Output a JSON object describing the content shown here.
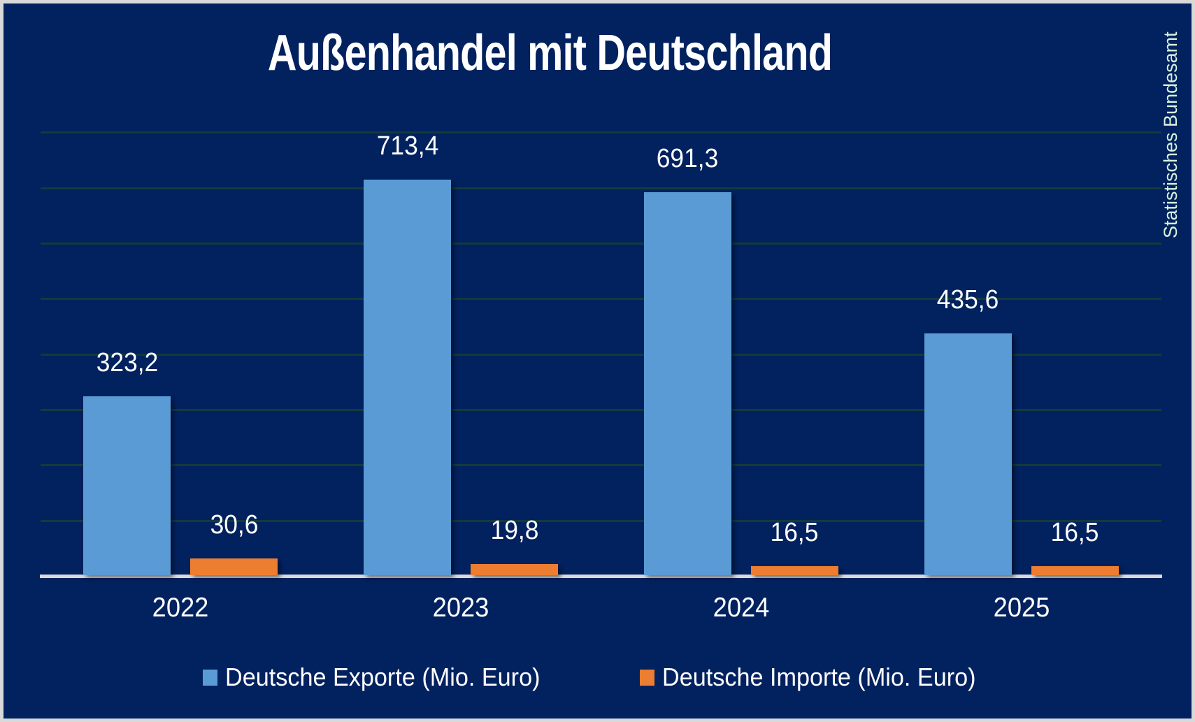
{
  "title": "Außenhandel mit Deutschland",
  "watermark": "Statistisches Bundesamt",
  "colors": {
    "background": "#02215f",
    "frame": "#d9d9d9",
    "export_blue": "#5b9bd5",
    "import_orange": "#ed7d31",
    "gridline": "#143a3a",
    "axis_line": "#d9d9d9",
    "label_text": "#ffffff",
    "watermark_text": "#d8f2de"
  },
  "chart_data": {
    "type": "bar",
    "title": "Außenhandel mit Deutschland",
    "categories": [
      "2022",
      "2023",
      "2024",
      "2025"
    ],
    "series": [
      {
        "name": "Deutsche Exporte (Mio. Euro)",
        "color_key": "export_blue",
        "values": [
          323.2,
          713.4,
          691.3,
          435.6
        ],
        "value_labels": [
          "323,2",
          "713,4",
          "691,3",
          "435,6"
        ]
      },
      {
        "name": "Deutsche Importe (Mio. Euro)",
        "color_key": "import_orange",
        "values": [
          30.6,
          19.8,
          16.5,
          16.5
        ],
        "value_labels": [
          "30,6",
          "19,8",
          "16,5",
          "16,5"
        ]
      }
    ],
    "xlabel": "",
    "ylabel": "",
    "ylim": [
      0,
      880
    ],
    "gridline_step": 100,
    "gridline_max": 800,
    "grid": true,
    "legend_position": "bottom",
    "value_format": "decimal-comma"
  },
  "legend": {
    "items": [
      {
        "label": "Deutsche Exporte (Mio. Euro)"
      },
      {
        "label": "Deutsche Importe (Mio. Euro)"
      }
    ]
  }
}
